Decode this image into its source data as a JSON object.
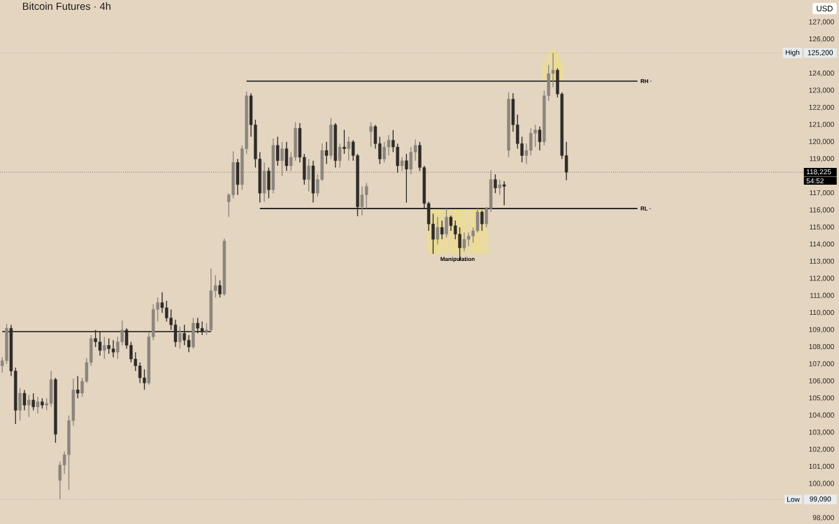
{
  "chart_data": {
    "type": "candlestick",
    "title": "Bitcoin Futures · 4h",
    "categories": [
      null,
      null,
      null,
      null,
      null,
      null,
      null,
      null,
      null,
      null,
      null,
      null,
      null,
      null,
      null,
      null,
      null,
      null,
      null,
      null,
      null,
      null,
      null,
      null,
      null,
      null,
      null,
      null,
      null,
      null,
      null,
      null,
      null,
      null,
      null,
      null,
      null,
      null,
      null,
      null,
      null,
      null,
      null,
      null,
      null,
      null,
      null,
      null,
      null,
      null,
      null,
      null,
      null,
      null,
      null,
      null,
      null,
      null,
      null,
      null,
      null,
      null,
      null,
      null,
      null,
      null,
      null,
      null,
      null,
      null,
      null,
      null,
      null,
      null,
      null,
      null,
      null,
      null,
      null,
      null,
      null,
      null,
      null,
      null,
      null,
      null,
      null,
      null,
      null,
      null,
      null,
      null,
      null,
      null,
      null,
      null,
      null,
      null,
      null,
      null,
      null,
      null,
      null,
      null,
      null,
      null,
      null,
      null,
      null,
      null,
      null,
      null,
      null,
      null,
      null,
      null,
      null,
      null,
      null,
      null,
      null,
      null,
      null,
      null,
      null,
      null,
      null,
      null,
      null,
      null,
      null,
      null,
      null,
      null,
      null,
      null,
      null,
      null,
      null,
      null,
      null,
      null,
      null,
      null,
      null,
      null,
      null,
      null,
      null,
      null,
      null,
      null,
      null,
      null,
      null,
      null,
      null,
      null,
      null,
      null,
      null,
      null,
      null,
      null,
      null,
      null,
      null,
      null,
      null,
      null,
      null,
      null,
      null,
      null,
      null,
      null,
      null,
      null,
      null,
      null,
      null
    ],
    "ohlc": [
      [
        106900,
        107400,
        106500,
        107200
      ],
      [
        107200,
        109350,
        107000,
        109100
      ],
      [
        109100,
        109300,
        106300,
        106600
      ],
      [
        106600,
        106800,
        103500,
        104300
      ],
      [
        104300,
        105600,
        103700,
        105300
      ],
      [
        105300,
        105500,
        104300,
        104600
      ],
      [
        104600,
        105200,
        103900,
        104900
      ],
      [
        104900,
        105300,
        104300,
        104500
      ],
      [
        104500,
        105100,
        104100,
        104800
      ],
      [
        104800,
        105000,
        104400,
        104600
      ],
      [
        104600,
        105000,
        104300,
        104700
      ],
      [
        104700,
        106600,
        104500,
        106100
      ],
      [
        106100,
        106200,
        102400,
        102900
      ],
      [
        100200,
        101300,
        99090,
        101100
      ],
      [
        101100,
        101900,
        100600,
        101700
      ],
      [
        101700,
        104000,
        99650,
        103700
      ],
      [
        103700,
        106150,
        103400,
        105500
      ],
      [
        105500,
        106300,
        105000,
        105300
      ],
      [
        105300,
        106200,
        105100,
        106000
      ],
      [
        106000,
        107350,
        105900,
        107100
      ],
      [
        107100,
        108700,
        106900,
        108500
      ],
      [
        108500,
        109000,
        108000,
        108300
      ],
      [
        108300,
        108900,
        107500,
        107800
      ],
      [
        107800,
        108600,
        107300,
        108100
      ],
      [
        108100,
        108500,
        107600,
        107900
      ],
      [
        107900,
        108400,
        107400,
        107700
      ],
      [
        107700,
        108600,
        107300,
        108300
      ],
      [
        108300,
        109550,
        108100,
        109000
      ],
      [
        109000,
        109100,
        107900,
        108100
      ],
      [
        108100,
        108300,
        107100,
        107300
      ],
      [
        107300,
        107700,
        106600,
        106900
      ],
      [
        106900,
        107100,
        105900,
        106200
      ],
      [
        106200,
        106700,
        105500,
        105900
      ],
      [
        105900,
        108850,
        105800,
        108600
      ],
      [
        108600,
        110500,
        108400,
        110200
      ],
      [
        110200,
        110900,
        109500,
        110600
      ],
      [
        110600,
        111200,
        110000,
        110300
      ],
      [
        110300,
        110700,
        109500,
        109700
      ],
      [
        109700,
        110200,
        109000,
        109300
      ],
      [
        109300,
        109600,
        108000,
        108300
      ],
      [
        108300,
        109200,
        107900,
        108800
      ],
      [
        108800,
        109300,
        108100,
        108400
      ],
      [
        108400,
        108700,
        107700,
        108000
      ],
      [
        108000,
        109700,
        107900,
        109400
      ],
      [
        109400,
        109700,
        108800,
        109100
      ],
      [
        109100,
        109500,
        108700,
        108900
      ],
      [
        108900,
        109400,
        108700,
        109000
      ],
      [
        109000,
        112600,
        108900,
        111300
      ],
      [
        111300,
        112200,
        110900,
        111600
      ],
      [
        111600,
        111900,
        110900,
        111100
      ],
      [
        111100,
        114350,
        111000,
        114200
      ],
      [
        116500,
        117000,
        115600,
        116900
      ],
      [
        116900,
        119450,
        116700,
        118800
      ],
      [
        118800,
        119000,
        116900,
        117500
      ],
      [
        117500,
        119800,
        117200,
        119600
      ],
      [
        119600,
        122950,
        119300,
        122700
      ],
      [
        122700,
        122850,
        120300,
        121000
      ],
      [
        121000,
        121300,
        118500,
        119000
      ],
      [
        119000,
        119400,
        116450,
        117000
      ],
      [
        117000,
        118800,
        116500,
        118300
      ],
      [
        118300,
        118500,
        116700,
        117200
      ],
      [
        117200,
        120200,
        117000,
        119800
      ],
      [
        119800,
        120300,
        118600,
        118900
      ],
      [
        118900,
        120000,
        118000,
        119600
      ],
      [
        119600,
        120000,
        118300,
        118600
      ],
      [
        118600,
        119400,
        118300,
        119100
      ],
      [
        119100,
        121150,
        118900,
        120800
      ],
      [
        120800,
        121100,
        118800,
        119100
      ],
      [
        119100,
        119300,
        117500,
        117800
      ],
      [
        117800,
        119000,
        117100,
        118600
      ],
      [
        118600,
        118900,
        116450,
        117000
      ],
      [
        117000,
        118100,
        116800,
        117800
      ],
      [
        117800,
        119900,
        117700,
        119500
      ],
      [
        119500,
        120000,
        118700,
        119200
      ],
      [
        119200,
        121400,
        119000,
        121000
      ],
      [
        121000,
        121100,
        118500,
        118900
      ],
      [
        118900,
        119900,
        118500,
        119700
      ],
      [
        119700,
        120700,
        119300,
        119600
      ],
      [
        119600,
        120300,
        118900,
        120000
      ],
      [
        120000,
        120100,
        118900,
        119200
      ],
      [
        119200,
        119300,
        115650,
        116200
      ],
      [
        116200,
        117400,
        115700,
        116900
      ],
      [
        116900,
        117600,
        116100,
        117400
      ],
      [
        120600,
        121150,
        119700,
        120900
      ],
      [
        120900,
        121000,
        119600,
        119900
      ],
      [
        119900,
        120300,
        118700,
        119000
      ],
      [
        119000,
        120000,
        118800,
        119700
      ],
      [
        119700,
        120400,
        119200,
        120100
      ],
      [
        120100,
        120700,
        119400,
        119700
      ],
      [
        119700,
        119900,
        118200,
        118600
      ],
      [
        118600,
        119100,
        118300,
        118900
      ],
      [
        118900,
        119300,
        116450,
        118400
      ],
      [
        118400,
        119700,
        118100,
        119400
      ],
      [
        119400,
        120150,
        118900,
        119800
      ],
      [
        119800,
        120000,
        118300,
        118500
      ],
      [
        118500,
        118600,
        116100,
        116400
      ],
      [
        116400,
        116500,
        114800,
        115200
      ],
      [
        115200,
        115800,
        113450,
        114300
      ],
      [
        114300,
        115600,
        114000,
        115000
      ],
      [
        115000,
        115400,
        114300,
        114600
      ],
      [
        114600,
        116100,
        114400,
        115600
      ],
      [
        115600,
        115700,
        114800,
        115100
      ],
      [
        115100,
        115400,
        114300,
        114600
      ],
      [
        114600,
        115000,
        113050,
        113800
      ],
      [
        113800,
        114700,
        113600,
        114300
      ],
      [
        114300,
        114700,
        113900,
        114500
      ],
      [
        114500,
        115000,
        114100,
        114800
      ],
      [
        114800,
        116100,
        114700,
        115900
      ],
      [
        115900,
        116000,
        114800,
        115200
      ],
      [
        115200,
        116200,
        115000,
        116100
      ],
      [
        116100,
        118350,
        115900,
        117800
      ],
      [
        117800,
        118100,
        117000,
        117300
      ],
      [
        117300,
        117800,
        116900,
        117500
      ],
      [
        117500,
        117700,
        116300,
        117400
      ],
      [
        119500,
        122900,
        119100,
        122500
      ],
      [
        122500,
        122850,
        120600,
        121000
      ],
      [
        121000,
        121600,
        119600,
        119900
      ],
      [
        119900,
        120300,
        118800,
        119200
      ],
      [
        119200,
        119900,
        118700,
        119500
      ],
      [
        119500,
        120800,
        119200,
        120500
      ],
      [
        120500,
        121000,
        119700,
        120700
      ],
      [
        120700,
        120900,
        119500,
        120000
      ],
      [
        120000,
        123000,
        119800,
        122700
      ],
      [
        122700,
        124500,
        122400,
        124000
      ],
      [
        124000,
        125200,
        123200,
        124200
      ],
      [
        124200,
        124300,
        122600,
        122800
      ],
      [
        122800,
        122900,
        119000,
        119200
      ],
      [
        119200,
        120000,
        117750,
        118225
      ],
      null,
      null,
      null,
      null,
      null,
      null,
      null,
      null,
      null,
      null,
      null,
      null,
      null,
      null,
      null,
      null,
      null,
      null,
      null,
      null,
      null,
      null,
      null,
      null,
      null,
      null,
      null,
      null,
      null,
      null,
      null,
      null,
      null,
      null,
      null,
      null,
      null,
      null,
      null,
      null,
      null,
      null,
      null,
      null,
      null,
      null,
      null,
      null,
      null,
      null,
      null,
      null,
      null
    ],
    "colors": [
      "#8b857d",
      "#8b857d",
      "#2e2b28",
      "#2e2b28",
      "#8b857d",
      "#2e2b28",
      "#8b857d",
      "#2e2b28",
      "#8b857d",
      "#2e2b28",
      "#8b857d",
      "#8b857d",
      "#2e2b28",
      "#8b857d",
      "#8b857d",
      "#8b857d",
      "#8b857d",
      "#2e2b28",
      "#8b857d",
      "#8b857d",
      "#8b857d",
      "#2e2b28",
      "#2e2b28",
      "#8b857d",
      "#2e2b28",
      "#2e2b28",
      "#8b857d",
      "#8b857d",
      "#2e2b28",
      "#2e2b28",
      "#2e2b28",
      "#2e2b28",
      "#2e2b28",
      "#8b857d",
      "#8b857d",
      "#8b857d",
      "#2e2b28",
      "#2e2b28",
      "#2e2b28",
      "#2e2b28",
      "#8b857d",
      "#2e2b28",
      "#2e2b28",
      "#8b857d",
      "#2e2b28",
      "#2e2b28",
      "#8b857d",
      "#8b857d",
      "#8b857d",
      "#2e2b28",
      "#8b857d",
      "#8b857d",
      "#8b857d",
      "#2e2b28",
      "#8b857d",
      "#8b857d",
      "#2e2b28",
      "#2e2b28",
      "#2e2b28",
      "#8b857d",
      "#2e2b28",
      "#8b857d",
      "#2e2b28",
      "#8b857d",
      "#2e2b28",
      "#8b857d",
      "#8b857d",
      "#2e2b28",
      "#2e2b28",
      "#8b857d",
      "#2e2b28",
      "#8b857d",
      "#8b857d",
      "#2e2b28",
      "#8b857d",
      "#2e2b28",
      "#8b857d",
      "#2e2b28",
      "#8b857d",
      "#2e2b28",
      "#2e2b28",
      "#8b857d",
      "#8b857d",
      "#8b857d",
      "#2e2b28",
      "#2e2b28",
      "#8b857d",
      "#8b857d",
      "#2e2b28",
      "#2e2b28",
      "#8b857d",
      "#2e2b28",
      "#8b857d",
      "#8b857d",
      "#2e2b28",
      "#2e2b28",
      "#2e2b28",
      "#2e2b28",
      "#8b857d",
      "#2e2b28",
      "#8b857d",
      "#2e2b28",
      "#2e2b28",
      "#2e2b28",
      "#8b857d",
      "#8b857d",
      "#8b857d",
      "#8b857d",
      "#2e2b28",
      "#8b857d",
      "#8b857d",
      "#2e2b28",
      "#8b857d",
      "#2e2b28",
      "#8b857d",
      "#2e2b28",
      "#2e2b28",
      "#2e2b28",
      "#8b857d",
      "#8b857d",
      "#8b857d",
      "#2e2b28",
      "#8b857d",
      "#8b857d",
      "#8b857d",
      "#2e2b28",
      "#2e2b28",
      "#2e2b28",
      null,
      null,
      null,
      null,
      null,
      null,
      null,
      null,
      null,
      null,
      null,
      null,
      null,
      null,
      null,
      null,
      null,
      null,
      null,
      null,
      null,
      null,
      null,
      null,
      null,
      null,
      null,
      null,
      null,
      null,
      null,
      null,
      null,
      null,
      null,
      null,
      null,
      null,
      null,
      null,
      null,
      null,
      null,
      null,
      null,
      null,
      null,
      null,
      null,
      null,
      null,
      null,
      null
    ],
    "series": [
      {
        "name": "RH ·",
        "type": "line",
        "color": "#161514",
        "values": [
          null,
          null,
          null,
          null,
          null,
          null,
          null,
          null,
          null,
          null,
          null,
          null,
          null,
          null,
          null,
          null,
          null,
          null,
          null,
          null,
          null,
          null,
          null,
          null,
          null,
          null,
          null,
          null,
          null,
          null,
          null,
          null,
          null,
          null,
          null,
          null,
          null,
          null,
          null,
          null,
          null,
          null,
          null,
          null,
          null,
          null,
          null,
          null,
          null,
          null,
          null,
          null,
          null,
          null,
          null,
          123550,
          123550,
          123550,
          123550,
          123550,
          123550,
          123550,
          123550,
          123550,
          123550,
          123550,
          123550,
          123550,
          123550,
          123550,
          123550,
          123550,
          123550,
          123550,
          123550,
          123550,
          123550,
          123550,
          123550,
          123550,
          123550,
          123550,
          123550,
          123550,
          123550,
          123550,
          123550,
          123550,
          123550,
          123550,
          123550,
          123550,
          123550,
          123550,
          123550,
          123550,
          123550,
          123550,
          123550,
          123550,
          123550,
          123550,
          123550,
          123550,
          123550,
          123550,
          123550,
          123550,
          123550,
          123550,
          123550,
          123550,
          123550,
          123550,
          123550,
          123550,
          123550,
          123550,
          123550,
          123550,
          123550,
          123550,
          123550,
          123550,
          123550,
          123550,
          123550,
          123550,
          123550,
          123550,
          123550,
          123550,
          123550,
          123550,
          123550,
          123550,
          123550,
          123550,
          123550,
          123550,
          123550,
          123550,
          123550,
          123550,
          null,
          null,
          null,
          null,
          null,
          null,
          null,
          null,
          null,
          null,
          null,
          null,
          null,
          null,
          null,
          null,
          null,
          null,
          null,
          null,
          null,
          null,
          null,
          null,
          null,
          null,
          null,
          null,
          null,
          null,
          null,
          null,
          null,
          null,
          null,
          null,
          null
        ]
      },
      {
        "name": "RL ·",
        "type": "line",
        "color": "#161514",
        "values": [
          null,
          null,
          null,
          null,
          null,
          null,
          null,
          null,
          null,
          null,
          null,
          null,
          null,
          null,
          null,
          null,
          null,
          null,
          null,
          null,
          null,
          null,
          null,
          null,
          null,
          null,
          null,
          null,
          null,
          null,
          null,
          null,
          null,
          null,
          null,
          null,
          null,
          null,
          null,
          null,
          null,
          null,
          null,
          null,
          null,
          null,
          null,
          null,
          null,
          null,
          null,
          null,
          null,
          null,
          null,
          null,
          null,
          null,
          116100,
          116100,
          116100,
          116100,
          116100,
          116100,
          116100,
          116100,
          116100,
          116100,
          116100,
          116100,
          116100,
          116100,
          116100,
          116100,
          116100,
          116100,
          116100,
          116100,
          116100,
          116100,
          116100,
          116100,
          116100,
          116100,
          116100,
          116100,
          116100,
          116100,
          116100,
          116100,
          116100,
          116100,
          116100,
          116100,
          116100,
          116100,
          116100,
          116100,
          116100,
          116100,
          116100,
          116100,
          116100,
          116100,
          116100,
          116100,
          116100,
          116100,
          116100,
          116100,
          116100,
          116100,
          116100,
          116100,
          116100,
          116100,
          116100,
          116100,
          116100,
          116100,
          116100,
          116100,
          116100,
          116100,
          116100,
          116100,
          116100,
          116100,
          116100,
          116100,
          116100,
          116100,
          116100,
          116100,
          116100,
          116100,
          116100,
          116100,
          116100,
          116100,
          116100,
          116100,
          116100,
          116100,
          null,
          null,
          null,
          null,
          null,
          null,
          null,
          null,
          null,
          null,
          null,
          null,
          null,
          null,
          null,
          null,
          null,
          null,
          null,
          null,
          null,
          null,
          null,
          null,
          null,
          null,
          null,
          null,
          null,
          null,
          null,
          null,
          null,
          null,
          null,
          null,
          null
        ]
      },
      {
        "type": "line",
        "color": "#161514",
        "values": [
          108900,
          108900,
          108900,
          108900,
          108900,
          108900,
          108900,
          108900,
          108900,
          108900,
          108900,
          108900,
          108900,
          108900,
          108900,
          108900,
          108900,
          108900,
          108900,
          108900,
          108900,
          108900,
          108900,
          108900,
          108900,
          108900,
          108900,
          108900,
          108900,
          108900,
          108900,
          108900,
          108900,
          108900,
          108900,
          108900,
          108900,
          108900,
          108900,
          108900,
          108900,
          108900,
          108900,
          108900,
          108900,
          108900,
          108900,
          108900,
          null,
          null,
          null,
          null,
          null,
          null,
          null,
          null,
          null,
          null,
          null,
          null,
          null,
          null,
          null,
          null,
          null,
          null,
          null,
          null,
          null,
          null,
          null,
          null,
          null,
          null,
          null,
          null,
          null,
          null,
          null,
          null,
          null,
          null,
          null,
          null,
          null,
          null,
          null,
          null,
          null,
          null,
          null,
          null,
          null,
          null,
          null,
          null,
          null,
          null,
          null,
          null,
          null,
          null,
          null,
          null,
          null,
          null,
          null,
          null,
          null,
          null,
          null,
          null,
          null,
          null,
          null,
          null,
          null,
          null,
          null,
          null,
          null,
          null,
          null,
          null,
          null,
          null,
          null,
          null,
          null,
          null,
          null,
          null,
          null,
          null,
          null,
          null,
          null,
          null,
          null,
          null,
          null,
          null,
          null,
          null,
          null,
          null,
          null,
          null,
          null,
          null,
          null,
          null,
          null,
          null,
          null,
          null,
          null,
          null,
          null,
          null,
          null,
          null,
          null,
          null,
          null,
          null,
          null,
          null,
          null,
          null,
          null,
          null,
          null,
          null,
          null,
          null,
          null,
          null,
          null,
          null,
          null
        ]
      },
      {
        "name": "Manipulation",
        "type": "bar",
        "color": "#ecdc96",
        "base": [
          null,
          null,
          null,
          null,
          null,
          null,
          null,
          null,
          null,
          null,
          null,
          null,
          null,
          null,
          null,
          null,
          null,
          null,
          null,
          null,
          null,
          null,
          null,
          null,
          null,
          null,
          null,
          null,
          null,
          null,
          null,
          null,
          null,
          null,
          null,
          null,
          null,
          null,
          null,
          null,
          null,
          null,
          null,
          null,
          null,
          null,
          null,
          null,
          null,
          null,
          null,
          null,
          null,
          null,
          null,
          null,
          null,
          null,
          null,
          null,
          null,
          null,
          null,
          null,
          null,
          null,
          null,
          null,
          null,
          null,
          null,
          null,
          null,
          null,
          null,
          null,
          null,
          null,
          null,
          null,
          null,
          null,
          null,
          null,
          null,
          null,
          null,
          null,
          null,
          null,
          null,
          null,
          null,
          null,
          null,
          null,
          113450,
          113450,
          113450,
          113450,
          113450,
          113450,
          113450,
          113450,
          113450,
          113450,
          113450,
          113450,
          113450,
          113450,
          null,
          null,
          null,
          null,
          null,
          null,
          null,
          null,
          null,
          null,
          null,
          null,
          null,
          null,
          null,
          null,
          null,
          null,
          null,
          null,
          null,
          null,
          null,
          null,
          null,
          null,
          null,
          null,
          null,
          null,
          null,
          null,
          null,
          null,
          null,
          null,
          null,
          null,
          null,
          null,
          null,
          null,
          null,
          null,
          null,
          null,
          null,
          null,
          null,
          null,
          null,
          null,
          null,
          null,
          null,
          null,
          null,
          null,
          null,
          null,
          null,
          null,
          null,
          null,
          null,
          null,
          null,
          null,
          null,
          null,
          null
        ],
        "values": [
          null,
          null,
          null,
          null,
          null,
          null,
          null,
          null,
          null,
          null,
          null,
          null,
          null,
          null,
          null,
          null,
          null,
          null,
          null,
          null,
          null,
          null,
          null,
          null,
          null,
          null,
          null,
          null,
          null,
          null,
          null,
          null,
          null,
          null,
          null,
          null,
          null,
          null,
          null,
          null,
          null,
          null,
          null,
          null,
          null,
          null,
          null,
          null,
          null,
          null,
          null,
          null,
          null,
          null,
          null,
          null,
          null,
          null,
          null,
          null,
          null,
          null,
          null,
          null,
          null,
          null,
          null,
          null,
          null,
          null,
          null,
          null,
          null,
          null,
          null,
          null,
          null,
          null,
          null,
          null,
          null,
          null,
          null,
          null,
          null,
          null,
          null,
          null,
          null,
          null,
          null,
          null,
          null,
          null,
          null,
          null,
          2650,
          2650,
          2650,
          2650,
          2650,
          2650,
          2650,
          2650,
          2650,
          2650,
          2650,
          2650,
          2650,
          2650,
          null,
          null,
          null,
          null,
          null,
          null,
          null,
          null,
          null,
          null,
          null,
          null,
          null,
          null,
          null,
          null,
          null,
          null,
          null,
          null,
          null,
          null,
          null,
          null,
          null,
          null,
          null,
          null,
          null,
          null,
          null,
          null,
          null,
          null,
          null,
          null,
          null,
          null,
          null,
          null,
          null,
          null,
          null,
          null,
          null,
          null,
          null,
          null,
          null,
          null,
          null,
          null,
          null,
          null,
          null,
          null,
          null,
          null,
          null,
          null,
          null,
          null,
          null,
          null,
          null,
          null,
          null,
          null,
          null,
          null,
          null
        ]
      },
      {
        "type": "bar",
        "color": "#ecdc96",
        "base": [
          null,
          null,
          null,
          null,
          null,
          null,
          null,
          null,
          null,
          null,
          null,
          null,
          null,
          null,
          null,
          null,
          null,
          null,
          null,
          null,
          null,
          null,
          null,
          null,
          null,
          null,
          null,
          null,
          null,
          null,
          null,
          null,
          null,
          null,
          null,
          null,
          null,
          null,
          null,
          null,
          null,
          null,
          null,
          null,
          null,
          null,
          null,
          null,
          null,
          null,
          null,
          null,
          null,
          null,
          null,
          null,
          null,
          null,
          null,
          null,
          null,
          null,
          null,
          null,
          null,
          null,
          null,
          null,
          null,
          null,
          null,
          null,
          null,
          null,
          null,
          null,
          null,
          null,
          null,
          null,
          null,
          null,
          null,
          null,
          null,
          null,
          null,
          null,
          null,
          null,
          null,
          null,
          null,
          null,
          null,
          null,
          null,
          null,
          null,
          null,
          null,
          null,
          null,
          null,
          null,
          null,
          null,
          null,
          null,
          null,
          null,
          null,
          null,
          null,
          null,
          null,
          null,
          null,
          null,
          null,
          null,
          null,
          123550,
          123550,
          123550,
          123550,
          123550,
          null,
          null,
          null,
          null,
          null,
          null,
          null,
          null,
          null,
          null,
          null,
          null,
          null,
          null,
          null,
          null,
          null,
          null,
          null,
          null,
          null,
          null,
          null,
          null,
          null,
          null,
          null,
          null,
          null,
          null,
          null,
          null,
          null,
          null,
          null,
          null,
          null,
          null,
          null,
          null,
          null,
          null,
          null,
          null,
          null,
          null,
          null,
          null,
          null,
          null,
          null,
          null,
          null,
          null
        ],
        "values": [
          null,
          null,
          null,
          null,
          null,
          null,
          null,
          null,
          null,
          null,
          null,
          null,
          null,
          null,
          null,
          null,
          null,
          null,
          null,
          null,
          null,
          null,
          null,
          null,
          null,
          null,
          null,
          null,
          null,
          null,
          null,
          null,
          null,
          null,
          null,
          null,
          null,
          null,
          null,
          null,
          null,
          null,
          null,
          null,
          null,
          null,
          null,
          null,
          null,
          null,
          null,
          null,
          null,
          null,
          null,
          null,
          null,
          null,
          null,
          null,
          null,
          null,
          null,
          null,
          null,
          null,
          null,
          null,
          null,
          null,
          null,
          null,
          null,
          null,
          null,
          null,
          null,
          null,
          null,
          null,
          null,
          null,
          null,
          null,
          null,
          null,
          null,
          null,
          null,
          null,
          null,
          null,
          null,
          null,
          null,
          null,
          null,
          null,
          null,
          null,
          null,
          null,
          null,
          null,
          null,
          null,
          null,
          null,
          null,
          null,
          null,
          null,
          null,
          null,
          null,
          null,
          null,
          null,
          null,
          null,
          null,
          null,
          1150,
          1700,
          1850,
          1700,
          1150,
          null,
          null,
          null,
          null,
          null,
          null,
          null,
          null,
          null,
          null,
          null,
          null,
          null,
          null,
          null,
          null,
          null,
          null,
          null,
          null,
          null,
          null,
          null,
          null,
          null,
          null,
          null,
          null,
          null,
          null,
          null,
          null,
          null,
          null,
          null,
          null,
          null,
          null,
          null,
          null,
          null,
          null,
          null,
          null,
          null,
          null,
          null,
          null,
          null,
          null,
          null,
          null,
          null,
          null
        ]
      }
    ],
    "ylim": [
      97650,
      128300
    ],
    "yticks": [
      {
        "value": 98000,
        "label": "98,000"
      },
      {
        "value": 100000,
        "label": "100,000"
      },
      {
        "value": 101000,
        "label": "101,000"
      },
      {
        "value": 102000,
        "label": "102,000"
      },
      {
        "value": 103000,
        "label": "103,000"
      },
      {
        "value": 104000,
        "label": "104,000"
      },
      {
        "value": 105000,
        "label": "105,000"
      },
      {
        "value": 106000,
        "label": "106,000"
      },
      {
        "value": 107000,
        "label": "107,000"
      },
      {
        "value": 108000,
        "label": "108,000"
      },
      {
        "value": 109000,
        "label": "109,000"
      },
      {
        "value": 110000,
        "label": "110,000"
      },
      {
        "value": 111000,
        "label": "111,000"
      },
      {
        "value": 112000,
        "label": "112,000"
      },
      {
        "value": 113000,
        "label": "113,000"
      },
      {
        "value": 114000,
        "label": "114,000"
      },
      {
        "value": 115000,
        "label": "115,000"
      },
      {
        "value": 116000,
        "label": "116,000"
      },
      {
        "value": 117000,
        "label": "117,000"
      },
      {
        "value": 119000,
        "label": "119,000"
      },
      {
        "value": 120000,
        "label": "120,000"
      },
      {
        "value": 121000,
        "label": "121,000"
      },
      {
        "value": 122000,
        "label": "122,000"
      },
      {
        "value": 123000,
        "label": "123,000"
      },
      {
        "value": 124000,
        "label": "124,000"
      },
      {
        "value": 126000,
        "label": "126,000"
      },
      {
        "value": 127000,
        "label": "127,000"
      }
    ],
    "ref_lines": [
      {
        "axis": "y",
        "value": 125200,
        "label": "125,200",
        "color": "#a39b90",
        "line_style": "dotted"
      },
      {
        "axis": "y",
        "value": 118225,
        "label": "118,225",
        "color": "#55504a",
        "line_style": "dotted"
      },
      {
        "axis": "y",
        "value": 99090,
        "label": "99,090",
        "color": "#a39b90",
        "line_style": "dotted"
      }
    ],
    "annotations": [
      "High",
      "54:52",
      "Low",
      "USD"
    ]
  }
}
